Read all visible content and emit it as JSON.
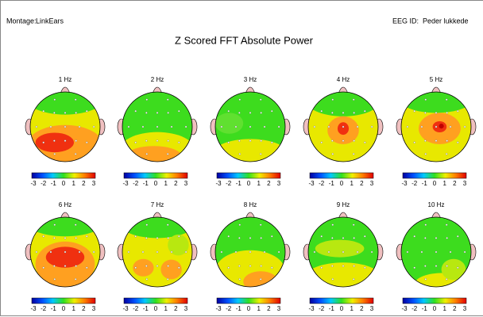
{
  "header": {
    "montage_label": "Montage:",
    "montage": "LinkEars",
    "eeg_id_label": "EEG ID:",
    "eeg_id": "Peder lukkede"
  },
  "title": "Z Scored FFT Absolute Power",
  "maps": [
    {
      "label": "1 Hz"
    },
    {
      "label": "2 Hz"
    },
    {
      "label": "3 Hz"
    },
    {
      "label": "4 Hz"
    },
    {
      "label": "5 Hz"
    },
    {
      "label": "6 Hz"
    },
    {
      "label": "7 Hz"
    },
    {
      "label": "8 Hz"
    },
    {
      "label": "9 Hz"
    },
    {
      "label": "10 Hz"
    }
  ],
  "scale": {
    "ticks": [
      -3,
      -2,
      -1,
      0,
      1,
      2,
      3
    ]
  }
}
